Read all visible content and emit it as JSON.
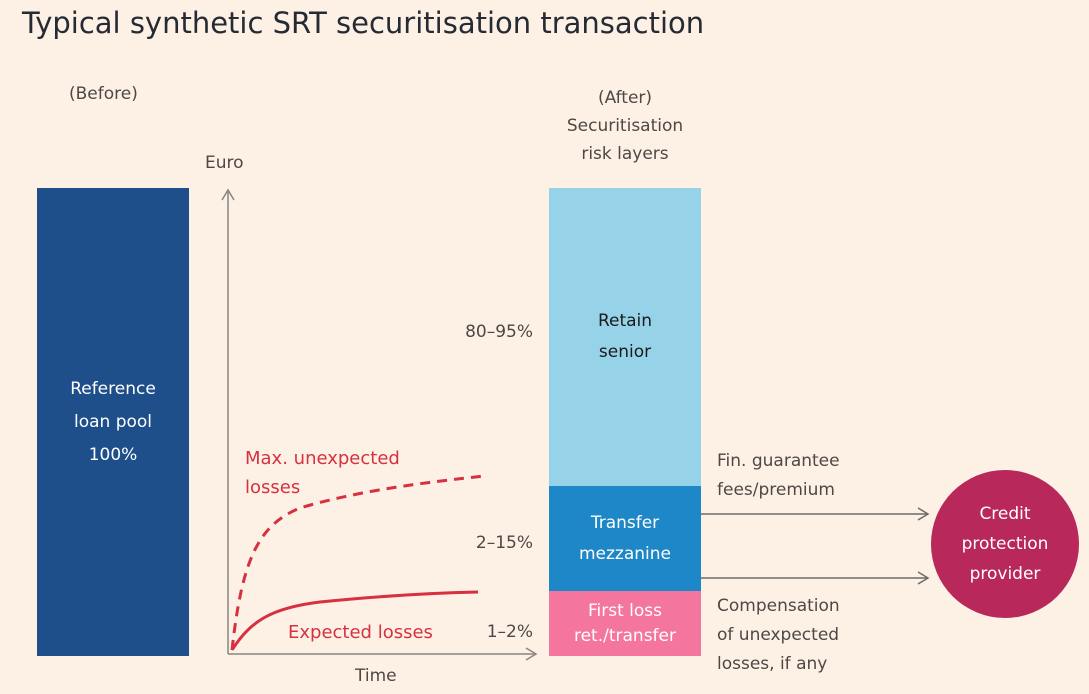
{
  "title": "Typical synthetic SRT securitisation transaction",
  "before_label": "(Before)",
  "after_label_1": "(After)",
  "after_label_2": "Securitisation",
  "after_label_3": "risk layers",
  "axis": {
    "y_label": "Euro",
    "x_label": "Time"
  },
  "pool": {
    "line1": "Reference",
    "line2": "loan pool",
    "line3": "100%"
  },
  "curves": {
    "max_line1": "Max. unexpected",
    "max_line2": "losses",
    "expected": "Expected losses"
  },
  "layers": {
    "senior": {
      "pct": "80–95%",
      "line1": "Retain",
      "line2": "senior"
    },
    "mezzanine": {
      "pct": "2–15%",
      "line1": "Transfer",
      "line2": "mezzanine"
    },
    "first_loss": {
      "pct": "1–2%",
      "line1": "First loss",
      "line2": "ret./transfer"
    }
  },
  "flows": {
    "top_line1": "Fin. guarantee",
    "top_line2": "fees/premium",
    "bottom_line1": "Compensation",
    "bottom_line2": "of unexpected",
    "bottom_line3": "losses, if any"
  },
  "provider": {
    "line1": "Credit",
    "line2": "protection",
    "line3": "provider"
  },
  "colors": {
    "background": "#fdf1e6",
    "pool": "#1f4f8a",
    "senior": "#96d3e8",
    "mezzanine": "#1e87c8",
    "first_loss": "#f4759d",
    "provider": "#b8285a",
    "loss_curves": "#d7303f"
  }
}
